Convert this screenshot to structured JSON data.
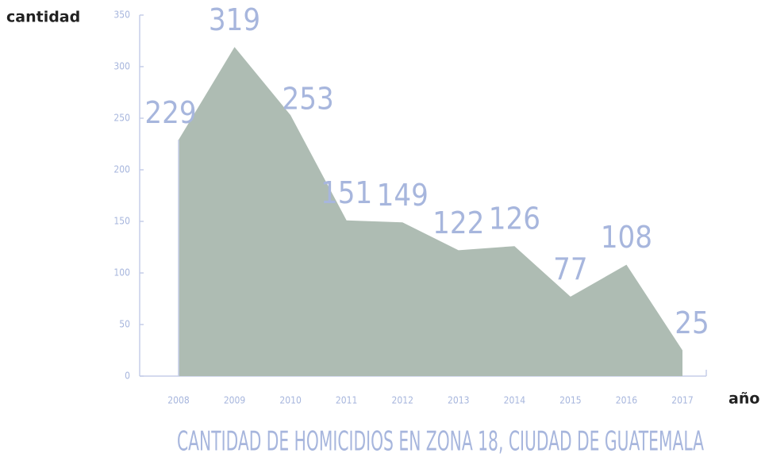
{
  "chart_data": {
    "type": "area",
    "title": "CANTIDAD DE HOMICIDIOS EN ZONA 18, CIUDAD DE GUATEMALA",
    "y_label": "cantidad",
    "x_label": "año",
    "categories": [
      "2008",
      "2009",
      "2010",
      "2011",
      "2012",
      "2013",
      "2014",
      "2015",
      "2016",
      "2017"
    ],
    "values": [
      229,
      319,
      253,
      151,
      149,
      122,
      126,
      77,
      108,
      25
    ],
    "color": "#aebcb3",
    "ylim": [
      0,
      350
    ],
    "yticks": [
      0,
      50,
      100,
      150,
      200,
      250,
      300,
      350
    ]
  }
}
